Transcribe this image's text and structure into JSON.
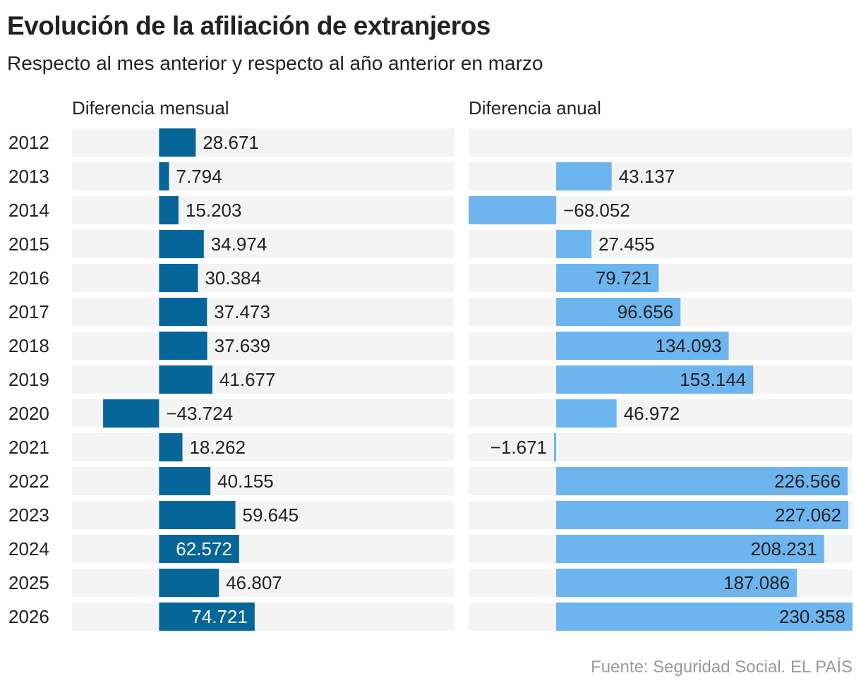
{
  "title": "Evolución de la afiliación de extranjeros",
  "subtitle": "Respecto al mes anterior y respecto al año anterior en marzo",
  "source": "Fuente: Seguridad Social. EL PAÍS",
  "colors": {
    "monthly": "#066699",
    "annual": "#6db5ef",
    "track": "#f4f4f4",
    "text": "#222222"
  },
  "chart_data": [
    {
      "type": "bar",
      "orientation": "horizontal",
      "title": "Diferencia mensual",
      "categories": [
        "2012",
        "2013",
        "2014",
        "2015",
        "2016",
        "2017",
        "2018",
        "2019",
        "2020",
        "2021",
        "2022",
        "2023",
        "2024",
        "2025",
        "2026"
      ],
      "values": [
        28671,
        7794,
        15203,
        34974,
        30384,
        37473,
        37639,
        41677,
        -43724,
        18262,
        40155,
        59645,
        62572,
        46807,
        74721
      ],
      "labels": [
        "28.671",
        "7.794",
        "15.203",
        "34.974",
        "30.384",
        "37.473",
        "37.639",
        "41.677",
        "−43.724",
        "18.262",
        "40.155",
        "59.645",
        "62.572",
        "46.807",
        "74.721"
      ],
      "xlim": [
        -68052,
        230358
      ]
    },
    {
      "type": "bar",
      "orientation": "horizontal",
      "title": "Diferencia anual",
      "categories": [
        "2012",
        "2013",
        "2014",
        "2015",
        "2016",
        "2017",
        "2018",
        "2019",
        "2020",
        "2021",
        "2022",
        "2023",
        "2024",
        "2025",
        "2026"
      ],
      "values": [
        null,
        43137,
        -68052,
        27455,
        79721,
        96656,
        134093,
        153144,
        46972,
        -1671,
        226566,
        227062,
        208231,
        187086,
        230358
      ],
      "labels": [
        "",
        "43.137",
        "−68.052",
        "27.455",
        "79.721",
        "96.656",
        "134.093",
        "153.144",
        "46.972",
        "−1.671",
        "226.566",
        "227.062",
        "208.231",
        "187.086",
        "230.358"
      ],
      "xlim": [
        -68052,
        230358
      ]
    }
  ]
}
